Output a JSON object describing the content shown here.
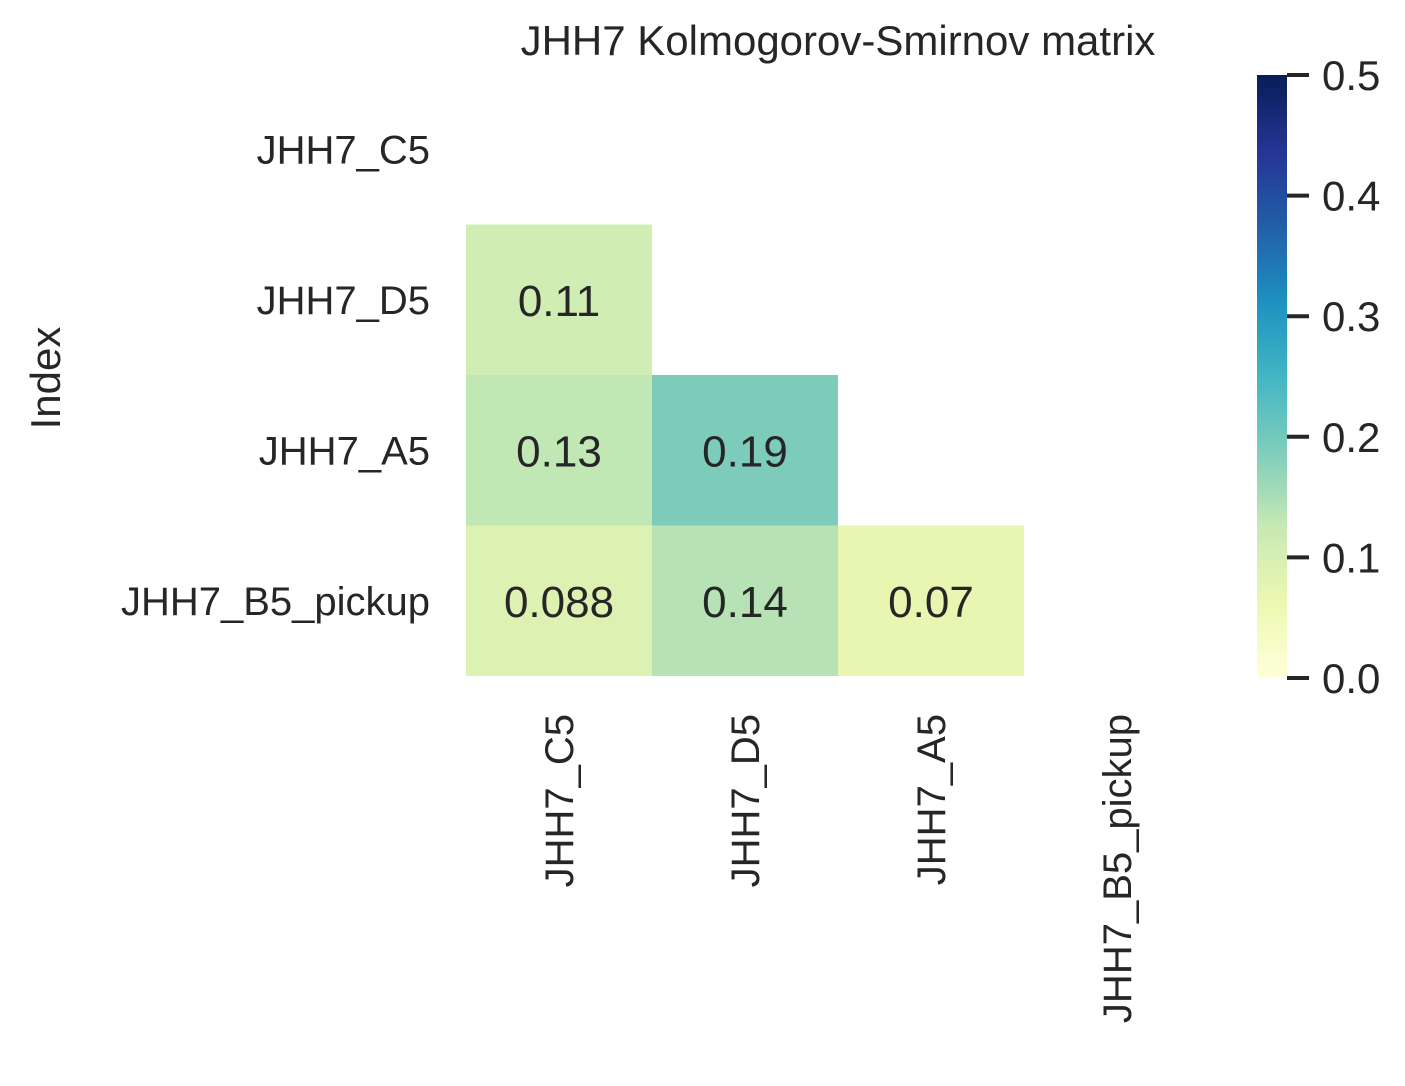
{
  "chart_data": {
    "type": "heatmap",
    "title": "JHH7 Kolmogorov-Smirnov matrix",
    "xlabel": "",
    "ylabel": "Index",
    "row_labels": [
      "JHH7_C5",
      "JHH7_D5",
      "JHH7_A5",
      "JHH7_B5_pickup"
    ],
    "col_labels": [
      "JHH7_C5",
      "JHH7_D5",
      "JHH7_A5",
      "JHH7_B5_pickup"
    ],
    "cells": [
      {
        "row": 1,
        "col": 0,
        "value": 0.11,
        "label": "0.11"
      },
      {
        "row": 2,
        "col": 0,
        "value": 0.13,
        "label": "0.13"
      },
      {
        "row": 2,
        "col": 1,
        "value": 0.19,
        "label": "0.19"
      },
      {
        "row": 3,
        "col": 0,
        "value": 0.088,
        "label": "0.088"
      },
      {
        "row": 3,
        "col": 1,
        "value": 0.14,
        "label": "0.14"
      },
      {
        "row": 3,
        "col": 2,
        "value": 0.07,
        "label": "0.07"
      }
    ],
    "mask": "upper triangle and diagonal hidden",
    "colormap": "YlGnBu",
    "vmin": 0.0,
    "vmax": 0.5,
    "colorbar": {
      "ticks": [
        0.0,
        0.1,
        0.2,
        0.3,
        0.4,
        0.5
      ],
      "tick_labels": [
        "0.0",
        "0.1",
        "0.2",
        "0.3",
        "0.4",
        "0.5"
      ],
      "placement": "right"
    },
    "grid": false
  }
}
